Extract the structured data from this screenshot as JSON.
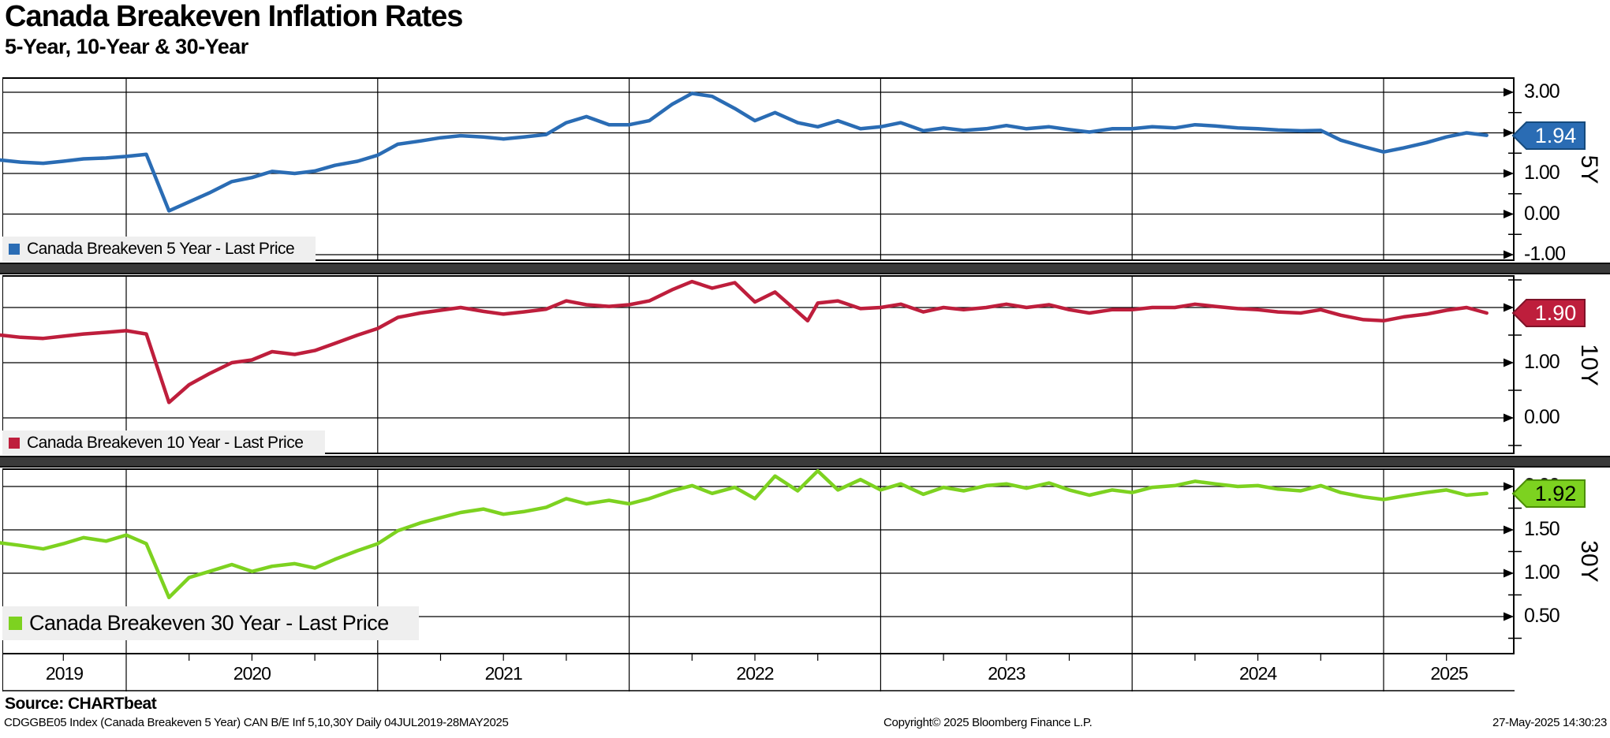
{
  "header": {
    "title": "Canada Breakeven Inflation Rates",
    "subtitle": "5-Year, 10-Year & 30-Year"
  },
  "source_line": "Source: CHARTbeat",
  "footer": {
    "left": "CDGGBE05 Index (Canada Breakeven 5 Year) CAN B/E Inf 5,10,30Y  Daily 04JUL2019-28MAY2025",
    "center": "Copyright© 2025 Bloomberg Finance L.P.",
    "right": "27-May-2025 14:30:23"
  },
  "colors": {
    "blue": "#2A6CB4",
    "red": "#BE1E3C",
    "green": "#7DD220",
    "separator": "#3A3A3A",
    "legend_bg": "#EFEFEF",
    "grid": "#000000"
  },
  "chart_data": {
    "type": "line",
    "title": "Canada Breakeven Inflation Rates",
    "subtitle": "5-Year, 10-Year & 30-Year",
    "x_unit": "decimal_year",
    "x_range": [
      2019.5,
      2025.42
    ],
    "x_tick_labels": [
      "2019",
      "2020",
      "2021",
      "2022",
      "2023",
      "2024",
      "2025"
    ],
    "grid": true,
    "legend_position": "bottom-left-inside",
    "panels": [
      {
        "id": "5Y",
        "axis_label": "5Y",
        "legend_label": "Canada Breakeven 5 Year - Last Price",
        "color": "#2A6CB4",
        "tag": {
          "value": "1.94",
          "bg": "#2A6CB4",
          "text_color": "#FFFFFF",
          "border": "#164A7C",
          "at": 1.94
        },
        "yticks": [
          3.0,
          2.0,
          1.0,
          0.0,
          -1.0
        ],
        "minor_yticks": [
          2.5,
          1.5,
          0.5,
          -0.5
        ],
        "ylim": [
          -1.16,
          3.37
        ],
        "x": [
          2019.5,
          2019.58,
          2019.67,
          2019.75,
          2019.83,
          2019.92,
          2020.0,
          2020.08,
          2020.17,
          2020.25,
          2020.33,
          2020.42,
          2020.5,
          2020.58,
          2020.67,
          2020.75,
          2020.83,
          2020.92,
          2021.0,
          2021.08,
          2021.17,
          2021.25,
          2021.33,
          2021.42,
          2021.5,
          2021.58,
          2021.67,
          2021.75,
          2021.83,
          2021.92,
          2022.0,
          2022.08,
          2022.17,
          2022.25,
          2022.33,
          2022.42,
          2022.5,
          2022.58,
          2022.67,
          2022.75,
          2022.83,
          2022.92,
          2023.0,
          2023.08,
          2023.17,
          2023.25,
          2023.33,
          2023.42,
          2023.5,
          2023.58,
          2023.67,
          2023.75,
          2023.83,
          2023.92,
          2024.0,
          2024.08,
          2024.17,
          2024.25,
          2024.33,
          2024.42,
          2024.5,
          2024.58,
          2024.67,
          2024.75,
          2024.83,
          2024.92,
          2025.0,
          2025.08,
          2025.17,
          2025.25,
          2025.33,
          2025.41
        ],
        "y": [
          1.33,
          1.28,
          1.25,
          1.3,
          1.36,
          1.38,
          1.42,
          1.47,
          0.08,
          0.3,
          0.52,
          0.8,
          0.9,
          1.05,
          1.0,
          1.06,
          1.2,
          1.3,
          1.45,
          1.72,
          1.8,
          1.88,
          1.93,
          1.9,
          1.85,
          1.9,
          1.96,
          2.25,
          2.4,
          2.2,
          2.2,
          2.3,
          2.7,
          2.97,
          2.9,
          2.6,
          2.3,
          2.5,
          2.25,
          2.15,
          2.3,
          2.1,
          2.15,
          2.25,
          2.05,
          2.12,
          2.06,
          2.1,
          2.18,
          2.1,
          2.15,
          2.08,
          2.02,
          2.1,
          2.1,
          2.15,
          2.12,
          2.2,
          2.17,
          2.12,
          2.1,
          2.07,
          2.05,
          2.06,
          1.82,
          1.66,
          1.53,
          1.63,
          1.76,
          1.9,
          2.0,
          1.94
        ]
      },
      {
        "id": "10Y",
        "axis_label": "10Y",
        "legend_label": "Canada Breakeven 10 Year - Last Price",
        "color": "#BE1E3C",
        "tag": {
          "value": "1.90",
          "bg": "#BE1E3C",
          "text_color": "#FFFFFF",
          "border": "#7E1228",
          "at": 1.9
        },
        "yticks": [
          2.0,
          1.0,
          0.0
        ],
        "minor_yticks": [
          2.5,
          1.5,
          0.5,
          -0.5
        ],
        "ylim": [
          -0.66,
          2.59
        ],
        "x": [
          2019.5,
          2019.58,
          2019.67,
          2019.75,
          2019.83,
          2019.92,
          2020.0,
          2020.08,
          2020.17,
          2020.25,
          2020.33,
          2020.42,
          2020.5,
          2020.58,
          2020.67,
          2020.75,
          2020.83,
          2020.92,
          2021.0,
          2021.08,
          2021.17,
          2021.25,
          2021.33,
          2021.42,
          2021.5,
          2021.58,
          2021.67,
          2021.75,
          2021.83,
          2021.92,
          2022.0,
          2022.08,
          2022.17,
          2022.25,
          2022.33,
          2022.42,
          2022.5,
          2022.58,
          2022.67,
          2022.71,
          2022.75,
          2022.83,
          2022.92,
          2023.0,
          2023.08,
          2023.17,
          2023.25,
          2023.33,
          2023.42,
          2023.5,
          2023.58,
          2023.67,
          2023.75,
          2023.83,
          2023.92,
          2024.0,
          2024.08,
          2024.17,
          2024.25,
          2024.33,
          2024.42,
          2024.5,
          2024.58,
          2024.67,
          2024.75,
          2024.83,
          2024.92,
          2025.0,
          2025.08,
          2025.17,
          2025.25,
          2025.33,
          2025.41
        ],
        "y": [
          1.5,
          1.46,
          1.44,
          1.48,
          1.52,
          1.55,
          1.58,
          1.52,
          0.28,
          0.6,
          0.8,
          1.0,
          1.05,
          1.2,
          1.15,
          1.22,
          1.35,
          1.5,
          1.62,
          1.82,
          1.9,
          1.95,
          2.0,
          1.93,
          1.88,
          1.92,
          1.97,
          2.12,
          2.05,
          2.02,
          2.05,
          2.12,
          2.32,
          2.47,
          2.35,
          2.45,
          2.1,
          2.28,
          1.92,
          1.76,
          2.08,
          2.12,
          1.98,
          2.0,
          2.06,
          1.92,
          2.0,
          1.96,
          2.0,
          2.06,
          2.0,
          2.05,
          1.96,
          1.9,
          1.96,
          1.96,
          2.0,
          2.0,
          2.06,
          2.02,
          1.98,
          1.96,
          1.92,
          1.9,
          1.96,
          1.86,
          1.78,
          1.76,
          1.83,
          1.88,
          1.95,
          2.0,
          1.9
        ]
      },
      {
        "id": "30Y",
        "axis_label": "30Y",
        "legend_label": "Canada Breakeven 30 Year - Last Price",
        "color": "#7DD220",
        "tag": {
          "value": "1.92",
          "bg": "#7DD220",
          "text_color": "#000000",
          "border": "#4C8E06",
          "at": 1.92
        },
        "yticks": [
          2.0,
          1.5,
          1.0,
          0.5
        ],
        "minor_yticks": [
          1.75,
          1.25,
          0.75,
          0.25
        ],
        "ylim": [
          0.06,
          2.21
        ],
        "x": [
          2019.5,
          2019.58,
          2019.67,
          2019.75,
          2019.83,
          2019.92,
          2020.0,
          2020.08,
          2020.17,
          2020.25,
          2020.33,
          2020.42,
          2020.5,
          2020.58,
          2020.67,
          2020.75,
          2020.83,
          2020.92,
          2021.0,
          2021.08,
          2021.17,
          2021.25,
          2021.33,
          2021.42,
          2021.5,
          2021.58,
          2021.67,
          2021.75,
          2021.83,
          2021.92,
          2022.0,
          2022.08,
          2022.17,
          2022.25,
          2022.33,
          2022.42,
          2022.5,
          2022.58,
          2022.67,
          2022.75,
          2022.83,
          2022.92,
          2023.0,
          2023.08,
          2023.17,
          2023.25,
          2023.33,
          2023.42,
          2023.5,
          2023.58,
          2023.67,
          2023.75,
          2023.83,
          2023.92,
          2024.0,
          2024.08,
          2024.17,
          2024.25,
          2024.33,
          2024.42,
          2024.5,
          2024.58,
          2024.67,
          2024.75,
          2024.83,
          2024.92,
          2025.0,
          2025.08,
          2025.17,
          2025.25,
          2025.33,
          2025.41
        ],
        "y": [
          1.35,
          1.32,
          1.28,
          1.34,
          1.41,
          1.37,
          1.44,
          1.34,
          0.72,
          0.95,
          1.02,
          1.1,
          1.02,
          1.08,
          1.11,
          1.06,
          1.16,
          1.26,
          1.34,
          1.49,
          1.58,
          1.64,
          1.7,
          1.74,
          1.68,
          1.71,
          1.76,
          1.86,
          1.8,
          1.84,
          1.8,
          1.86,
          1.95,
          2.01,
          1.92,
          1.99,
          1.86,
          2.12,
          1.95,
          2.18,
          1.96,
          2.08,
          1.96,
          2.03,
          1.91,
          1.99,
          1.95,
          2.01,
          2.03,
          1.98,
          2.04,
          1.96,
          1.9,
          1.96,
          1.93,
          1.99,
          2.01,
          2.06,
          2.03,
          2.0,
          2.01,
          1.97,
          1.95,
          2.01,
          1.93,
          1.88,
          1.85,
          1.89,
          1.93,
          1.96,
          1.9,
          1.92
        ]
      }
    ]
  }
}
